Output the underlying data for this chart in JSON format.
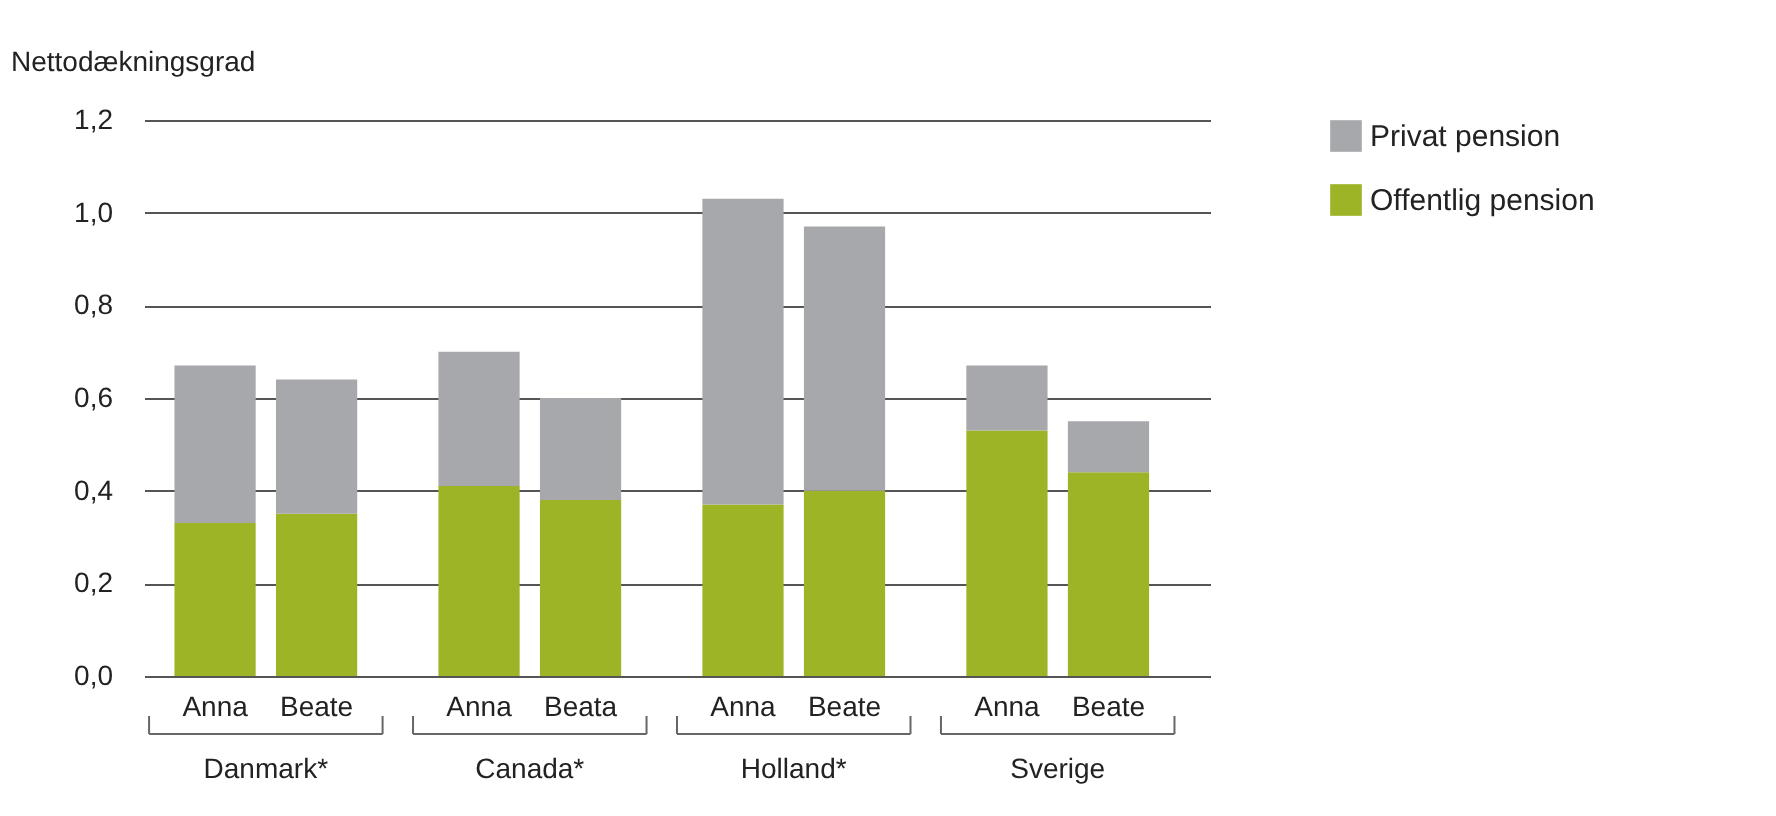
{
  "chart_data": {
    "type": "bar",
    "stacked": true,
    "ylabel": "Nettodækningsgrad",
    "categories": [
      "Anna",
      "Beate",
      "Anna",
      "Beata",
      "Anna",
      "Beate",
      "Anna",
      "Beate"
    ],
    "series": [
      {
        "name": "Offentlig pension",
        "color": "#9db427",
        "values": [
          0.33,
          0.35,
          0.41,
          0.38,
          0.37,
          0.4,
          0.53,
          0.44
        ]
      },
      {
        "name": "Privat pension",
        "color": "#a7a8ab",
        "values": [
          0.34,
          0.29,
          0.29,
          0.22,
          0.66,
          0.57,
          0.14,
          0.11
        ]
      }
    ],
    "annotations": [
      "Danmark*",
      "Canada*",
      "Holland*",
      "Sverige"
    ],
    "ylim": [
      0,
      1.2
    ],
    "yticks": [
      {
        "value": 0,
        "label": "0,0"
      },
      {
        "value": 0.2,
        "label": "0,2"
      },
      {
        "value": 0.4,
        "label": "0,4"
      },
      {
        "value": 0.6,
        "label": "0,6"
      },
      {
        "value": 0.8,
        "label": "0,8"
      },
      {
        "value": 1.0,
        "label": "1,0"
      },
      {
        "value": 1.2,
        "label": "1,2"
      }
    ],
    "grid": "y",
    "legend": "top right"
  }
}
